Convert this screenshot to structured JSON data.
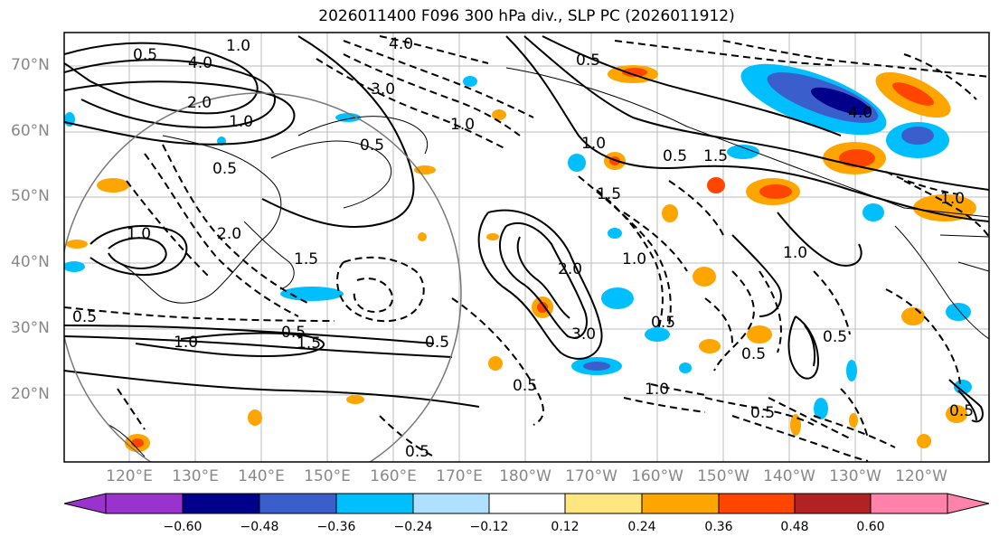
{
  "title": "2026011400 F096 300 hPa div., SLP PC (2026011912)",
  "lat_labels": [
    "70°N",
    "60°N",
    "50°N",
    "40°N",
    "30°N",
    "20°N"
  ],
  "lon_labels": [
    "120°E",
    "130°E",
    "140°E",
    "150°E",
    "160°E",
    "170°E",
    "180°W",
    "170°W",
    "160°W",
    "150°W",
    "140°W",
    "130°W",
    "120°W"
  ],
  "colorbar": {
    "ticks": [
      "−0.60",
      "−0.48",
      "−0.36",
      "−0.24",
      "−0.12",
      "0.12",
      "0.24",
      "0.36",
      "0.48",
      "0.60"
    ],
    "colors": [
      "#9a32cd",
      "#00008b",
      "#3a5fcd",
      "#00bfff",
      "#b0e0ff",
      "#ffffff",
      "#ffe680",
      "#ffa500",
      "#ff4500",
      "#b22222",
      "#ff82ab"
    ]
  },
  "contour_labels": [
    {
      "text": "4.0"
    },
    {
      "text": "2.0"
    },
    {
      "text": "1.0"
    },
    {
      "text": "4.0"
    },
    {
      "text": "3.0"
    },
    {
      "text": "0.5"
    },
    {
      "text": "0.5"
    },
    {
      "text": "1.0"
    },
    {
      "text": "1.0"
    },
    {
      "text": "1.5"
    },
    {
      "text": "0.5"
    },
    {
      "text": "1.5"
    },
    {
      "text": "1.0"
    },
    {
      "text": "0.5"
    },
    {
      "text": "0.5"
    },
    {
      "text": "1.0"
    },
    {
      "text": "1.5"
    },
    {
      "text": "0.5"
    },
    {
      "text": "1.0"
    },
    {
      "text": "0.5"
    },
    {
      "text": "0.5"
    },
    {
      "text": "2.0"
    },
    {
      "text": "3.0"
    },
    {
      "text": "0.5"
    },
    {
      "text": "1.0"
    },
    {
      "text": "0.5"
    },
    {
      "text": "1.0"
    },
    {
      "text": "0.5"
    },
    {
      "text": "0.5"
    },
    {
      "text": "1.0"
    },
    {
      "text": "2.0"
    },
    {
      "text": "1.5"
    },
    {
      "text": "4.0"
    },
    {
      "text": "0.5"
    },
    {
      "text": "1.0"
    },
    {
      "text": "0.5"
    },
    {
      "text": "0.5"
    }
  ]
}
